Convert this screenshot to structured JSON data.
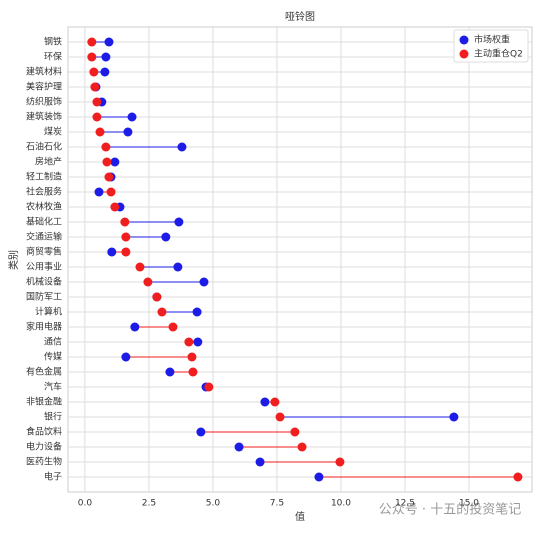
{
  "chart_data": {
    "type": "dumbbell",
    "title": "哑铃图",
    "x_label": "值",
    "y_label": "类别",
    "categories": [
      "钢铁",
      "环保",
      "建筑材料",
      "美容护理",
      "纺织服饰",
      "建筑装饰",
      "煤炭",
      "石油石化",
      "房地产",
      "轻工制造",
      "社会服务",
      "农林牧渔",
      "基础化工",
      "交通运输",
      "商贸零售",
      "公用事业",
      "机械设备",
      "国防军工",
      "计算机",
      "家用电器",
      "通信",
      "传媒",
      "有色金属",
      "汽车",
      "非银金融",
      "银行",
      "食品饮料",
      "电力设备",
      "医药生物",
      "电子"
    ],
    "series": [
      {
        "name": "市场权重",
        "color": "#1c1ce6",
        "values": [
          0.94,
          0.82,
          0.78,
          0.43,
          0.66,
          1.84,
          1.68,
          3.79,
          1.17,
          1.02,
          0.55,
          1.37,
          3.67,
          3.16,
          1.05,
          3.63,
          4.65,
          2.81,
          4.38,
          1.95,
          4.41,
          1.6,
          3.32,
          4.73,
          7.03,
          14.41,
          4.53,
          6.02,
          6.84,
          9.14
        ]
      },
      {
        "name": "主动重仓Q2",
        "color": "#f01e1e",
        "values": [
          0.27,
          0.27,
          0.35,
          0.39,
          0.47,
          0.47,
          0.59,
          0.82,
          0.86,
          0.94,
          1.02,
          1.17,
          1.56,
          1.6,
          1.6,
          2.15,
          2.46,
          2.81,
          3.01,
          3.44,
          4.06,
          4.18,
          4.22,
          4.84,
          7.42,
          7.62,
          8.2,
          8.48,
          9.96,
          16.91
        ]
      }
    ],
    "xlim": [
      -0.66,
      17.46
    ],
    "xticks": [
      {
        "value": 0,
        "label": "0.0"
      },
      {
        "value": 2.5,
        "label": "2.5"
      },
      {
        "value": 5,
        "label": "5.0"
      },
      {
        "value": 7.5,
        "label": "7.5"
      },
      {
        "value": 10,
        "label": "10.0"
      },
      {
        "value": 12.5,
        "label": "12.5"
      },
      {
        "value": 15,
        "label": "15.0"
      }
    ],
    "grid": true,
    "legend": "upper right",
    "watermark": "公众号 · 十五的投资笔记"
  }
}
